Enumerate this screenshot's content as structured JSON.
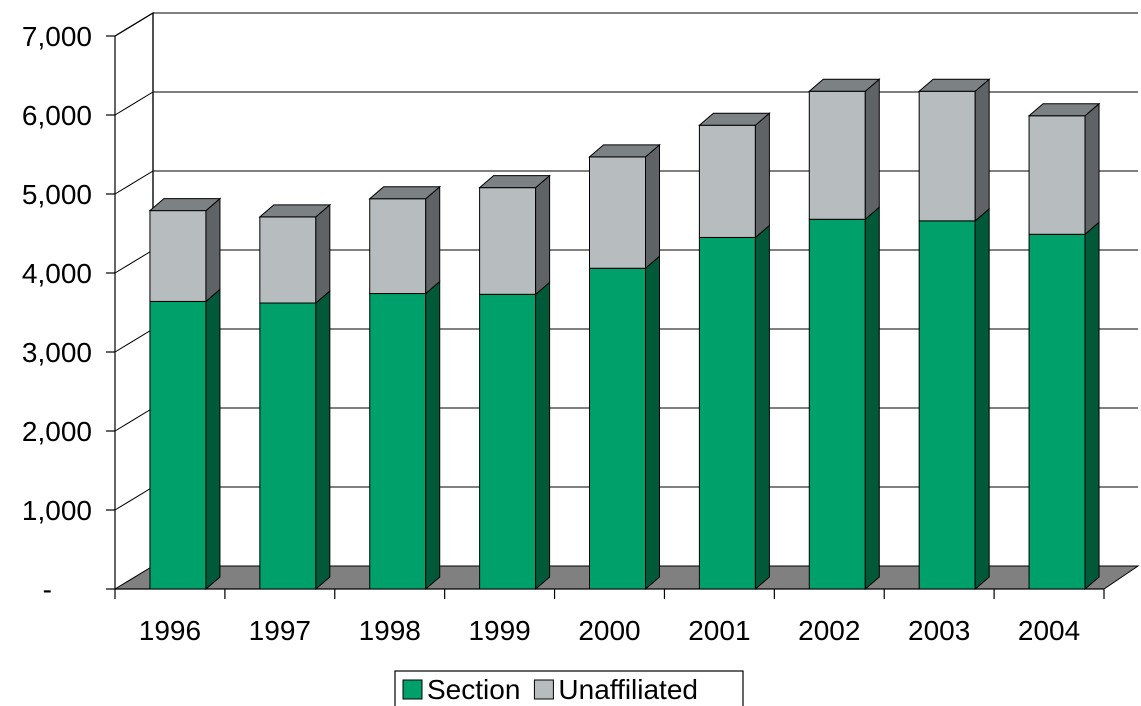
{
  "chart_data": {
    "type": "bar",
    "stacked": true,
    "three_d": true,
    "title": "",
    "xlabel": "",
    "ylabel": "",
    "categories": [
      "1996",
      "1997",
      "1998",
      "1999",
      "2000",
      "2001",
      "2002",
      "2003",
      "2004"
    ],
    "series": [
      {
        "name": "Section",
        "color": "#00a06a",
        "values": [
          3640,
          3620,
          3740,
          3730,
          4060,
          4450,
          4680,
          4660,
          4490
        ]
      },
      {
        "name": "Unaffiliated",
        "color": "#b7bcbe",
        "values": [
          1150,
          1090,
          1200,
          1350,
          1410,
          1420,
          1620,
          1640,
          1500
        ]
      }
    ],
    "ylim": [
      0,
      7000
    ],
    "yticks": [
      {
        "value": 0,
        "label": "-"
      },
      {
        "value": 1000,
        "label": "1,000"
      },
      {
        "value": 2000,
        "label": "2,000"
      },
      {
        "value": 3000,
        "label": "3,000"
      },
      {
        "value": 4000,
        "label": "4,000"
      },
      {
        "value": 5000,
        "label": "5,000"
      },
      {
        "value": 6000,
        "label": "6,000"
      },
      {
        "value": 7000,
        "label": "7,000"
      }
    ],
    "grid": true,
    "legend_position": "bottom"
  }
}
